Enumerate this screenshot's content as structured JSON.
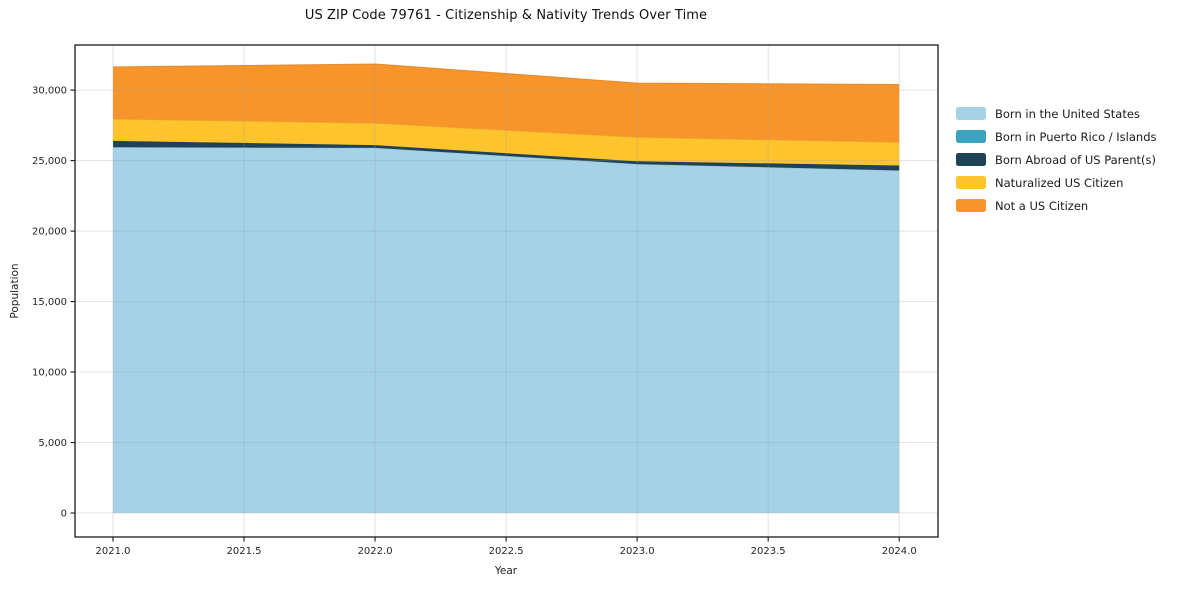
{
  "chart_data": {
    "type": "area",
    "stacked": true,
    "title": "US ZIP Code 79761 - Citizenship & Nativity Trends Over Time",
    "xlabel": "Year",
    "ylabel": "Population",
    "x": [
      2021,
      2022,
      2023,
      2024
    ],
    "series": [
      {
        "name": "Born in the United States",
        "color": "#a5d2e7",
        "values": [
          25950,
          25900,
          24750,
          24300
        ]
      },
      {
        "name": "Born in Puerto Rico / Islands",
        "color": "#3aa3bd",
        "values": [
          0,
          0,
          0,
          0
        ]
      },
      {
        "name": "Born Abroad of US Parent(s)",
        "color": "#1f4356",
        "values": [
          450,
          200,
          200,
          350
        ]
      },
      {
        "name": "Naturalized US Citizen",
        "color": "#fdc42e",
        "values": [
          1550,
          1550,
          1700,
          1650
        ]
      },
      {
        "name": "Not a US Citizen",
        "color": "#f7952b",
        "values": [
          3700,
          4200,
          3850,
          4100
        ]
      }
    ],
    "totals": [
      31650,
      31850,
      30500,
      30400
    ],
    "xlim": [
      2020.855,
      2024.148
    ],
    "ylim": [
      -1700,
      33200
    ],
    "xticks": [
      2021.0,
      2021.5,
      2022.0,
      2022.5,
      2023.0,
      2023.5,
      2024.0
    ],
    "xtick_labels": [
      "2021.0",
      "2021.5",
      "2022.0",
      "2022.5",
      "2023.0",
      "2023.5",
      "2024.0"
    ],
    "yticks": [
      0,
      5000,
      10000,
      15000,
      20000,
      25000,
      30000
    ],
    "ytick_labels": [
      "0",
      "5,000",
      "10,000",
      "15,000",
      "20,000",
      "25,000",
      "30,000"
    ],
    "grid": true,
    "legend_position": "right-outside",
    "colors": {
      "plot_border": "#1a1a1a",
      "grid_line": "#999999",
      "tick_text": "#262626",
      "title_text": "#111111"
    }
  }
}
